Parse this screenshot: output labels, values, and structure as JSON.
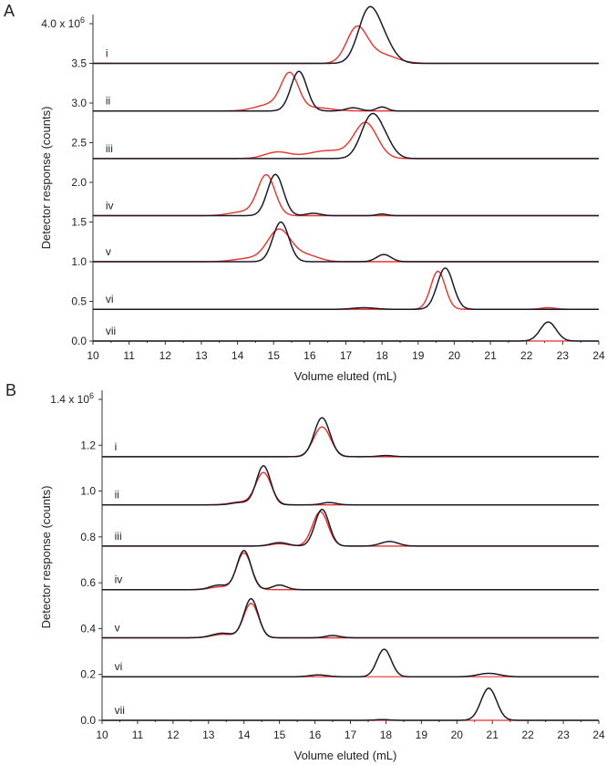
{
  "chart_data": [
    {
      "panel": "A",
      "type": "line",
      "xlabel": "Volume eluted (mL)",
      "ylabel": "Detector response (counts)",
      "xlim": [
        10,
        24
      ],
      "ylim": [
        0,
        4.0
      ],
      "x_ticks": [
        "10",
        "11",
        "12",
        "13",
        "14",
        "15",
        "16",
        "17",
        "18",
        "19",
        "20",
        "21",
        "22",
        "23",
        "24"
      ],
      "y_ticks": [
        {
          "v": 4.0,
          "label": "4.0 x 10",
          "sup": "6"
        },
        {
          "v": 3.5,
          "label": "3.5"
        },
        {
          "v": 3.0,
          "label": "3.0"
        },
        {
          "v": 2.5,
          "label": "2.5"
        },
        {
          "v": 2.0,
          "label": "2.0"
        },
        {
          "v": 1.5,
          "label": "1.5"
        },
        {
          "v": 1.0,
          "label": "1.0"
        },
        {
          "v": 0.5,
          "label": "0.5"
        },
        {
          "v": 0.0,
          "label": "0.0"
        }
      ],
      "traces": [
        {
          "label": "i",
          "baseline": 3.5,
          "black": [
            {
              "c": 17.6,
              "h": 0.58,
              "w": 0.28
            },
            {
              "c": 18.0,
              "h": 0.28,
              "w": 0.3
            }
          ],
          "red": [
            {
              "c": 17.3,
              "h": 0.42,
              "w": 0.28
            },
            {
              "c": 17.9,
              "h": 0.12,
              "w": 0.45
            }
          ]
        },
        {
          "label": "ii",
          "baseline": 2.9,
          "black": [
            {
              "c": 15.7,
              "h": 0.5,
              "w": 0.22
            },
            {
              "c": 17.2,
              "h": 0.04,
              "w": 0.2
            },
            {
              "c": 18.0,
              "h": 0.05,
              "w": 0.15
            }
          ],
          "red": [
            {
              "c": 15.45,
              "h": 0.45,
              "w": 0.24
            },
            {
              "c": 14.9,
              "h": 0.08,
              "w": 0.4
            },
            {
              "c": 16.2,
              "h": 0.04,
              "w": 0.4
            }
          ]
        },
        {
          "label": "iii",
          "baseline": 2.3,
          "black": [
            {
              "c": 17.7,
              "h": 0.52,
              "w": 0.28
            },
            {
              "c": 18.1,
              "h": 0.15,
              "w": 0.25
            }
          ],
          "red": [
            {
              "c": 17.55,
              "h": 0.44,
              "w": 0.32
            },
            {
              "c": 15.1,
              "h": 0.08,
              "w": 0.35
            },
            {
              "c": 16.5,
              "h": 0.1,
              "w": 0.55
            }
          ]
        },
        {
          "label": "iv",
          "baseline": 1.58,
          "black": [
            {
              "c": 15.05,
              "h": 0.52,
              "w": 0.22
            },
            {
              "c": 16.1,
              "h": 0.03,
              "w": 0.2
            },
            {
              "c": 18.0,
              "h": 0.02,
              "w": 0.15
            }
          ],
          "red": [
            {
              "c": 14.8,
              "h": 0.5,
              "w": 0.24
            },
            {
              "c": 14.2,
              "h": 0.05,
              "w": 0.4
            }
          ]
        },
        {
          "label": "v",
          "baseline": 1.0,
          "black": [
            {
              "c": 15.2,
              "h": 0.5,
              "w": 0.22
            },
            {
              "c": 18.05,
              "h": 0.09,
              "w": 0.2
            }
          ],
          "red": [
            {
              "c": 15.15,
              "h": 0.4,
              "w": 0.32
            },
            {
              "c": 14.3,
              "h": 0.04,
              "w": 0.4
            },
            {
              "c": 15.9,
              "h": 0.08,
              "w": 0.35
            }
          ]
        },
        {
          "label": "vi",
          "baseline": 0.4,
          "black": [
            {
              "c": 19.75,
              "h": 0.52,
              "w": 0.22
            },
            {
              "c": 17.5,
              "h": 0.02,
              "w": 0.3
            }
          ],
          "red": [
            {
              "c": 19.55,
              "h": 0.48,
              "w": 0.2
            },
            {
              "c": 22.6,
              "h": 0.02,
              "w": 0.2
            }
          ]
        },
        {
          "label": "vii",
          "baseline": 0.0,
          "black": [
            {
              "c": 22.6,
              "h": 0.24,
              "w": 0.22
            }
          ],
          "red": []
        }
      ]
    },
    {
      "panel": "B",
      "type": "line",
      "xlabel": "Volume eluted (mL)",
      "ylabel": "Detector response (counts)",
      "xlim": [
        10,
        24
      ],
      "ylim": [
        0,
        1.4
      ],
      "x_ticks": [
        "10",
        "11",
        "12",
        "13",
        "14",
        "15",
        "16",
        "17",
        "18",
        "19",
        "20",
        "21",
        "22",
        "23",
        "24"
      ],
      "y_ticks": [
        {
          "v": 1.4,
          "label": "1.4 x 10",
          "sup": "6"
        },
        {
          "v": 1.2,
          "label": "1.2"
        },
        {
          "v": 1.0,
          "label": "1.0"
        },
        {
          "v": 0.8,
          "label": "0.8"
        },
        {
          "v": 0.6,
          "label": "0.6"
        },
        {
          "v": 0.4,
          "label": "0.4"
        },
        {
          "v": 0.2,
          "label": "0.2"
        },
        {
          "v": 0.0,
          "label": "0.0"
        }
      ],
      "traces": [
        {
          "label": "i",
          "baseline": 1.15,
          "black": [
            {
              "c": 16.2,
              "h": 0.17,
              "w": 0.22
            },
            {
              "c": 18.0,
              "h": 0.005,
              "w": 0.2
            }
          ],
          "red": [
            {
              "c": 16.2,
              "h": 0.13,
              "w": 0.24
            }
          ]
        },
        {
          "label": "ii",
          "baseline": 0.94,
          "black": [
            {
              "c": 14.55,
              "h": 0.17,
              "w": 0.2
            },
            {
              "c": 13.9,
              "h": 0.01,
              "w": 0.25
            },
            {
              "c": 16.4,
              "h": 0.01,
              "w": 0.2
            }
          ],
          "red": [
            {
              "c": 14.55,
              "h": 0.14,
              "w": 0.22
            },
            {
              "c": 13.9,
              "h": 0.012,
              "w": 0.3
            }
          ]
        },
        {
          "label": "iii",
          "baseline": 0.76,
          "black": [
            {
              "c": 16.2,
              "h": 0.16,
              "w": 0.2
            },
            {
              "c": 15.0,
              "h": 0.015,
              "w": 0.25
            },
            {
              "c": 18.1,
              "h": 0.02,
              "w": 0.25
            }
          ],
          "red": [
            {
              "c": 16.15,
              "h": 0.15,
              "w": 0.22
            },
            {
              "c": 15.0,
              "h": 0.01,
              "w": 0.25
            }
          ]
        },
        {
          "label": "iv",
          "baseline": 0.57,
          "black": [
            {
              "c": 14.0,
              "h": 0.17,
              "w": 0.2
            },
            {
              "c": 13.3,
              "h": 0.02,
              "w": 0.25
            },
            {
              "c": 15.0,
              "h": 0.02,
              "w": 0.2
            }
          ],
          "red": [
            {
              "c": 14.0,
              "h": 0.16,
              "w": 0.21
            },
            {
              "c": 13.3,
              "h": 0.012,
              "w": 0.25
            }
          ]
        },
        {
          "label": "v",
          "baseline": 0.36,
          "black": [
            {
              "c": 14.2,
              "h": 0.17,
              "w": 0.2
            },
            {
              "c": 13.4,
              "h": 0.02,
              "w": 0.3
            },
            {
              "c": 16.5,
              "h": 0.01,
              "w": 0.2
            }
          ],
          "red": [
            {
              "c": 14.2,
              "h": 0.15,
              "w": 0.21
            },
            {
              "c": 13.4,
              "h": 0.015,
              "w": 0.3
            }
          ]
        },
        {
          "label": "vi",
          "baseline": 0.19,
          "black": [
            {
              "c": 17.95,
              "h": 0.12,
              "w": 0.2
            },
            {
              "c": 20.9,
              "h": 0.015,
              "w": 0.3
            },
            {
              "c": 16.1,
              "h": 0.008,
              "w": 0.25
            }
          ],
          "red": []
        },
        {
          "label": "vii",
          "baseline": 0.0,
          "black": [
            {
              "c": 20.9,
              "h": 0.14,
              "w": 0.22
            },
            {
              "c": 17.9,
              "h": 0.003,
              "w": 0.2
            }
          ],
          "red": []
        }
      ]
    }
  ],
  "colors": {
    "black_trace": "#1a1a2a",
    "red_trace": "#e8312a",
    "axis": "#333333"
  }
}
